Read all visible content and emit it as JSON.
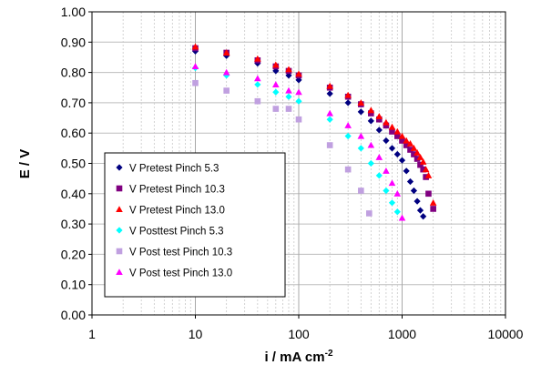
{
  "chart_data": {
    "type": "scatter",
    "title": "",
    "xlabel": {
      "main": "i / mA cm",
      "sup": "-2"
    },
    "ylabel": "E / V",
    "xscale": "log",
    "xlim": [
      1,
      10000
    ],
    "ylim": [
      0.0,
      1.0
    ],
    "grid": true,
    "legend_position": "lower-left",
    "x_ticks": [
      {
        "value": 1,
        "label": "1"
      },
      {
        "value": 10,
        "label": "10"
      },
      {
        "value": 100,
        "label": "100"
      },
      {
        "value": 1000,
        "label": "1000"
      },
      {
        "value": 10000,
        "label": "10000"
      }
    ],
    "y_ticks": [
      {
        "value": 0.0,
        "label": "0.00"
      },
      {
        "value": 0.1,
        "label": "0.10"
      },
      {
        "value": 0.2,
        "label": "0.20"
      },
      {
        "value": 0.3,
        "label": "0.30"
      },
      {
        "value": 0.4,
        "label": "0.40"
      },
      {
        "value": 0.5,
        "label": "0.50"
      },
      {
        "value": 0.6,
        "label": "0.60"
      },
      {
        "value": 0.7,
        "label": "0.70"
      },
      {
        "value": 0.8,
        "label": "0.80"
      },
      {
        "value": 0.9,
        "label": "0.90"
      },
      {
        "value": 1.0,
        "label": "1.00"
      }
    ],
    "series": [
      {
        "name": "V  Pretest Pinch 5.3",
        "color": "#000080",
        "marker": "diamond",
        "x": [
          10,
          20,
          40,
          60,
          80,
          100,
          200,
          300,
          400,
          500,
          600,
          700,
          800,
          900,
          1000,
          1100,
          1200,
          1300,
          1400,
          1500,
          1600
        ],
        "y": [
          0.87,
          0.855,
          0.83,
          0.805,
          0.79,
          0.775,
          0.73,
          0.7,
          0.67,
          0.64,
          0.61,
          0.575,
          0.55,
          0.53,
          0.51,
          0.475,
          0.44,
          0.41,
          0.375,
          0.345,
          0.325
        ]
      },
      {
        "name": "V Pretest Pinch 10.3",
        "color": "#800080",
        "marker": "square",
        "x": [
          10,
          20,
          40,
          60,
          80,
          100,
          200,
          300,
          400,
          500,
          600,
          700,
          800,
          900,
          1000,
          1100,
          1200,
          1300,
          1400,
          1500,
          1600,
          1700,
          1800,
          2000
        ],
        "y": [
          0.88,
          0.865,
          0.84,
          0.82,
          0.805,
          0.79,
          0.75,
          0.72,
          0.695,
          0.665,
          0.645,
          0.625,
          0.605,
          0.59,
          0.575,
          0.56,
          0.545,
          0.53,
          0.515,
          0.495,
          0.48,
          0.455,
          0.4,
          0.35
        ]
      },
      {
        "name": "V Pretest Pinch 13.0",
        "color": "#FF0000",
        "marker": "triangle",
        "x": [
          10,
          20,
          40,
          60,
          80,
          100,
          200,
          300,
          400,
          500,
          600,
          700,
          800,
          900,
          1000,
          1100,
          1200,
          1300,
          1400,
          1500,
          1600,
          1700,
          1800,
          2000
        ],
        "y": [
          0.885,
          0.865,
          0.845,
          0.825,
          0.81,
          0.795,
          0.755,
          0.725,
          0.7,
          0.675,
          0.655,
          0.635,
          0.62,
          0.605,
          0.59,
          0.575,
          0.565,
          0.55,
          0.535,
          0.52,
          0.505,
          0.48,
          0.46,
          0.37
        ]
      },
      {
        "name": "V Posttest Pinch 5.3",
        "color": "#00FFFF",
        "marker": "diamond",
        "x": [
          10,
          20,
          40,
          60,
          80,
          100,
          200,
          300,
          400,
          500,
          600,
          700,
          800,
          900
        ],
        "y": [
          0.815,
          0.79,
          0.76,
          0.735,
          0.72,
          0.705,
          0.645,
          0.59,
          0.55,
          0.5,
          0.46,
          0.41,
          0.37,
          0.34
        ]
      },
      {
        "name": "V Post test Pinch 10.3",
        "color": "#C0A0E0",
        "marker": "square",
        "x": [
          10,
          20,
          40,
          60,
          80,
          100,
          200,
          300,
          400,
          480
        ],
        "y": [
          0.765,
          0.74,
          0.705,
          0.68,
          0.68,
          0.645,
          0.56,
          0.48,
          0.41,
          0.335
        ]
      },
      {
        "name": "V Post test Pinch 13.0",
        "color": "#FF00FF",
        "marker": "triangle",
        "x": [
          10,
          20,
          40,
          60,
          80,
          100,
          200,
          300,
          400,
          500,
          600,
          700,
          800,
          900,
          1000
        ],
        "y": [
          0.82,
          0.8,
          0.78,
          0.76,
          0.74,
          0.735,
          0.665,
          0.625,
          0.59,
          0.56,
          0.52,
          0.475,
          0.435,
          0.4,
          0.32
        ]
      }
    ]
  }
}
